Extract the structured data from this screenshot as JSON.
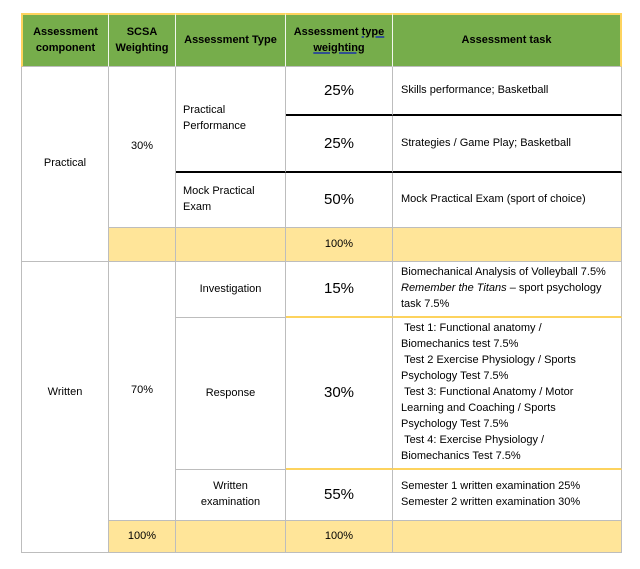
{
  "header": {
    "assessment_component": "Assessment component",
    "scsa_weighting": "SCSA Weighting",
    "assessment_type": "Assessment Type",
    "type_weighting_prefix": "Assessment",
    "type_weighting_underlined": "type weighting",
    "assessment_task": "Assessment task"
  },
  "practical": {
    "component": "Practical",
    "scsa_weighting": "30%",
    "performance_type": "Practical Performance",
    "performance_rows": [
      {
        "weighting": "25%",
        "task": "Skills performance; Basketball"
      },
      {
        "weighting": "25%",
        "task": "Strategies / Game Play; Basketball"
      }
    ],
    "mock_type": "Mock Practical Exam",
    "mock_weighting": "50%",
    "mock_task": "Mock Practical Exam (sport of choice)",
    "subtotal_type_weighting": "100%"
  },
  "written": {
    "component": "Written",
    "scsa_weighting": "70%",
    "investigation_type": "Investigation",
    "investigation_weighting": "15%",
    "investigation_task_line1": "Biomechanical Analysis of Volleyball 7.5%",
    "investigation_task_italic": "Remember the Titans",
    "investigation_task_rest": " – sport psychology task 7.5%",
    "response_type": "Response",
    "response_weighting": "30%",
    "response_tasks": [
      " Test 1: Functional anatomy /",
      "Biomechanics test 7.5%",
      " Test 2 Exercise Physiology / Sports",
      "Psychology Test 7.5%",
      " Test 3: Functional Anatomy / Motor",
      "Learning and Coaching / Sports",
      "Psychology Test 7.5%",
      " Test 4: Exercise Physiology /",
      "Biomechanics Test 7.5%"
    ],
    "written_exam_type": "Written examination",
    "written_exam_weighting": "55%",
    "written_exam_tasks": [
      "Semester 1 written examination 25%",
      "Semester 2 written examination 30%"
    ],
    "scsa_total": "100%",
    "type_weighting_total": "100%"
  },
  "colors": {
    "header_green": "#76ad4b",
    "subtotal_yellow": "#ffe599",
    "gold_border": "#fdd35e",
    "black_border": "#000000",
    "grid_gray": "#bdbdbd"
  }
}
